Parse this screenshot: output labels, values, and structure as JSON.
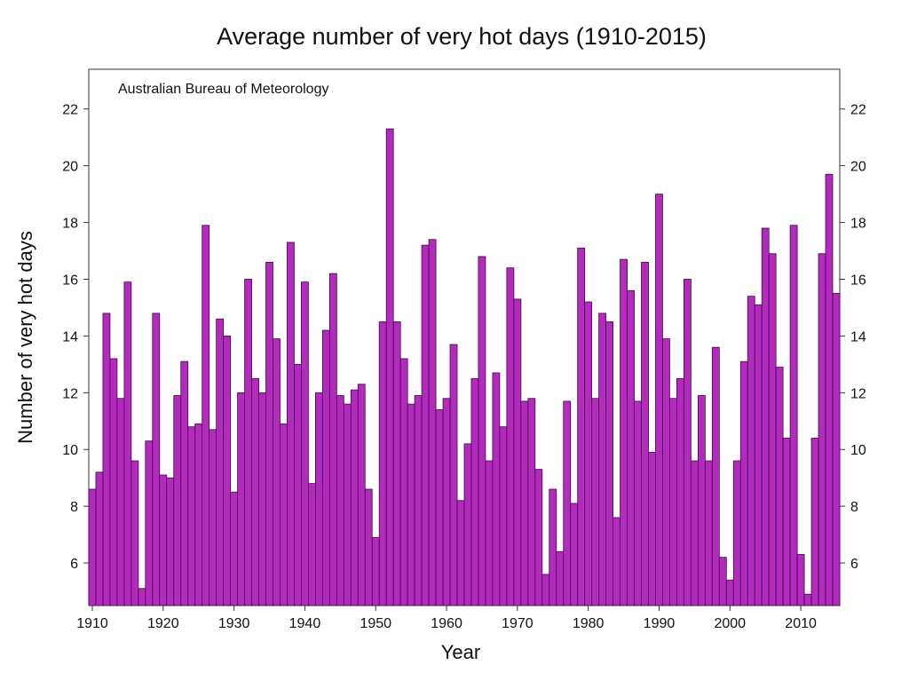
{
  "chart_data": {
    "type": "bar",
    "title": "Average number of very hot days (1910-2015)",
    "xlabel": "Year",
    "ylabel": "Number of very hot days",
    "annotation": "Australian Bureau of Meteorology",
    "x_ticks": [
      "1910",
      "1920",
      "1930",
      "1940",
      "1950",
      "1960",
      "1970",
      "1980",
      "1990",
      "2000",
      "2010"
    ],
    "y_ticks": [
      "6",
      "8",
      "10",
      "12",
      "14",
      "16",
      "18",
      "20",
      "22"
    ],
    "xlim": [
      1909.5,
      2015.5
    ],
    "ylim": [
      4.5,
      23.4
    ],
    "grid": false,
    "bar_color": "#b42abf",
    "x": [
      1910,
      1911,
      1912,
      1913,
      1914,
      1915,
      1916,
      1917,
      1918,
      1919,
      1920,
      1921,
      1922,
      1923,
      1924,
      1925,
      1926,
      1927,
      1928,
      1929,
      1930,
      1931,
      1932,
      1933,
      1934,
      1935,
      1936,
      1937,
      1938,
      1939,
      1940,
      1941,
      1942,
      1943,
      1944,
      1945,
      1946,
      1947,
      1948,
      1949,
      1950,
      1951,
      1952,
      1953,
      1954,
      1955,
      1956,
      1957,
      1958,
      1959,
      1960,
      1961,
      1962,
      1963,
      1964,
      1965,
      1966,
      1967,
      1968,
      1969,
      1970,
      1971,
      1972,
      1973,
      1974,
      1975,
      1976,
      1977,
      1978,
      1979,
      1980,
      1981,
      1982,
      1983,
      1984,
      1985,
      1986,
      1987,
      1988,
      1989,
      1990,
      1991,
      1992,
      1993,
      1994,
      1995,
      1996,
      1997,
      1998,
      1999,
      2000,
      2001,
      2002,
      2003,
      2004,
      2005,
      2006,
      2007,
      2008,
      2009,
      2010,
      2011,
      2012,
      2013,
      2014,
      2015
    ],
    "values": [
      8.6,
      9.2,
      14.8,
      13.2,
      11.8,
      15.9,
      9.6,
      5.1,
      10.3,
      14.8,
      9.1,
      9.0,
      11.9,
      13.1,
      10.8,
      10.9,
      17.9,
      10.7,
      14.6,
      14.0,
      8.5,
      12.0,
      16.0,
      12.5,
      12.0,
      16.6,
      13.9,
      10.9,
      17.3,
      13.0,
      15.9,
      8.8,
      12.0,
      14.2,
      16.2,
      11.9,
      11.6,
      12.1,
      12.3,
      8.6,
      6.9,
      14.5,
      21.3,
      14.5,
      13.2,
      11.6,
      11.9,
      17.2,
      17.4,
      11.4,
      11.8,
      13.7,
      8.2,
      10.2,
      12.5,
      16.8,
      9.6,
      12.7,
      10.8,
      16.4,
      15.3,
      11.7,
      11.8,
      9.3,
      5.6,
      8.6,
      6.4,
      11.7,
      8.1,
      17.1,
      15.2,
      11.8,
      14.8,
      14.5,
      7.6,
      16.7,
      15.6,
      11.7,
      16.6,
      9.9,
      19.0,
      13.9,
      11.8,
      12.5,
      16.0,
      9.6,
      11.9,
      9.6,
      13.6,
      6.2,
      5.4,
      9.6,
      13.1,
      15.4,
      15.1,
      17.8,
      16.9,
      12.9,
      10.4,
      17.9,
      6.3,
      4.9,
      10.4,
      16.9,
      19.7,
      15.5
    ]
  }
}
